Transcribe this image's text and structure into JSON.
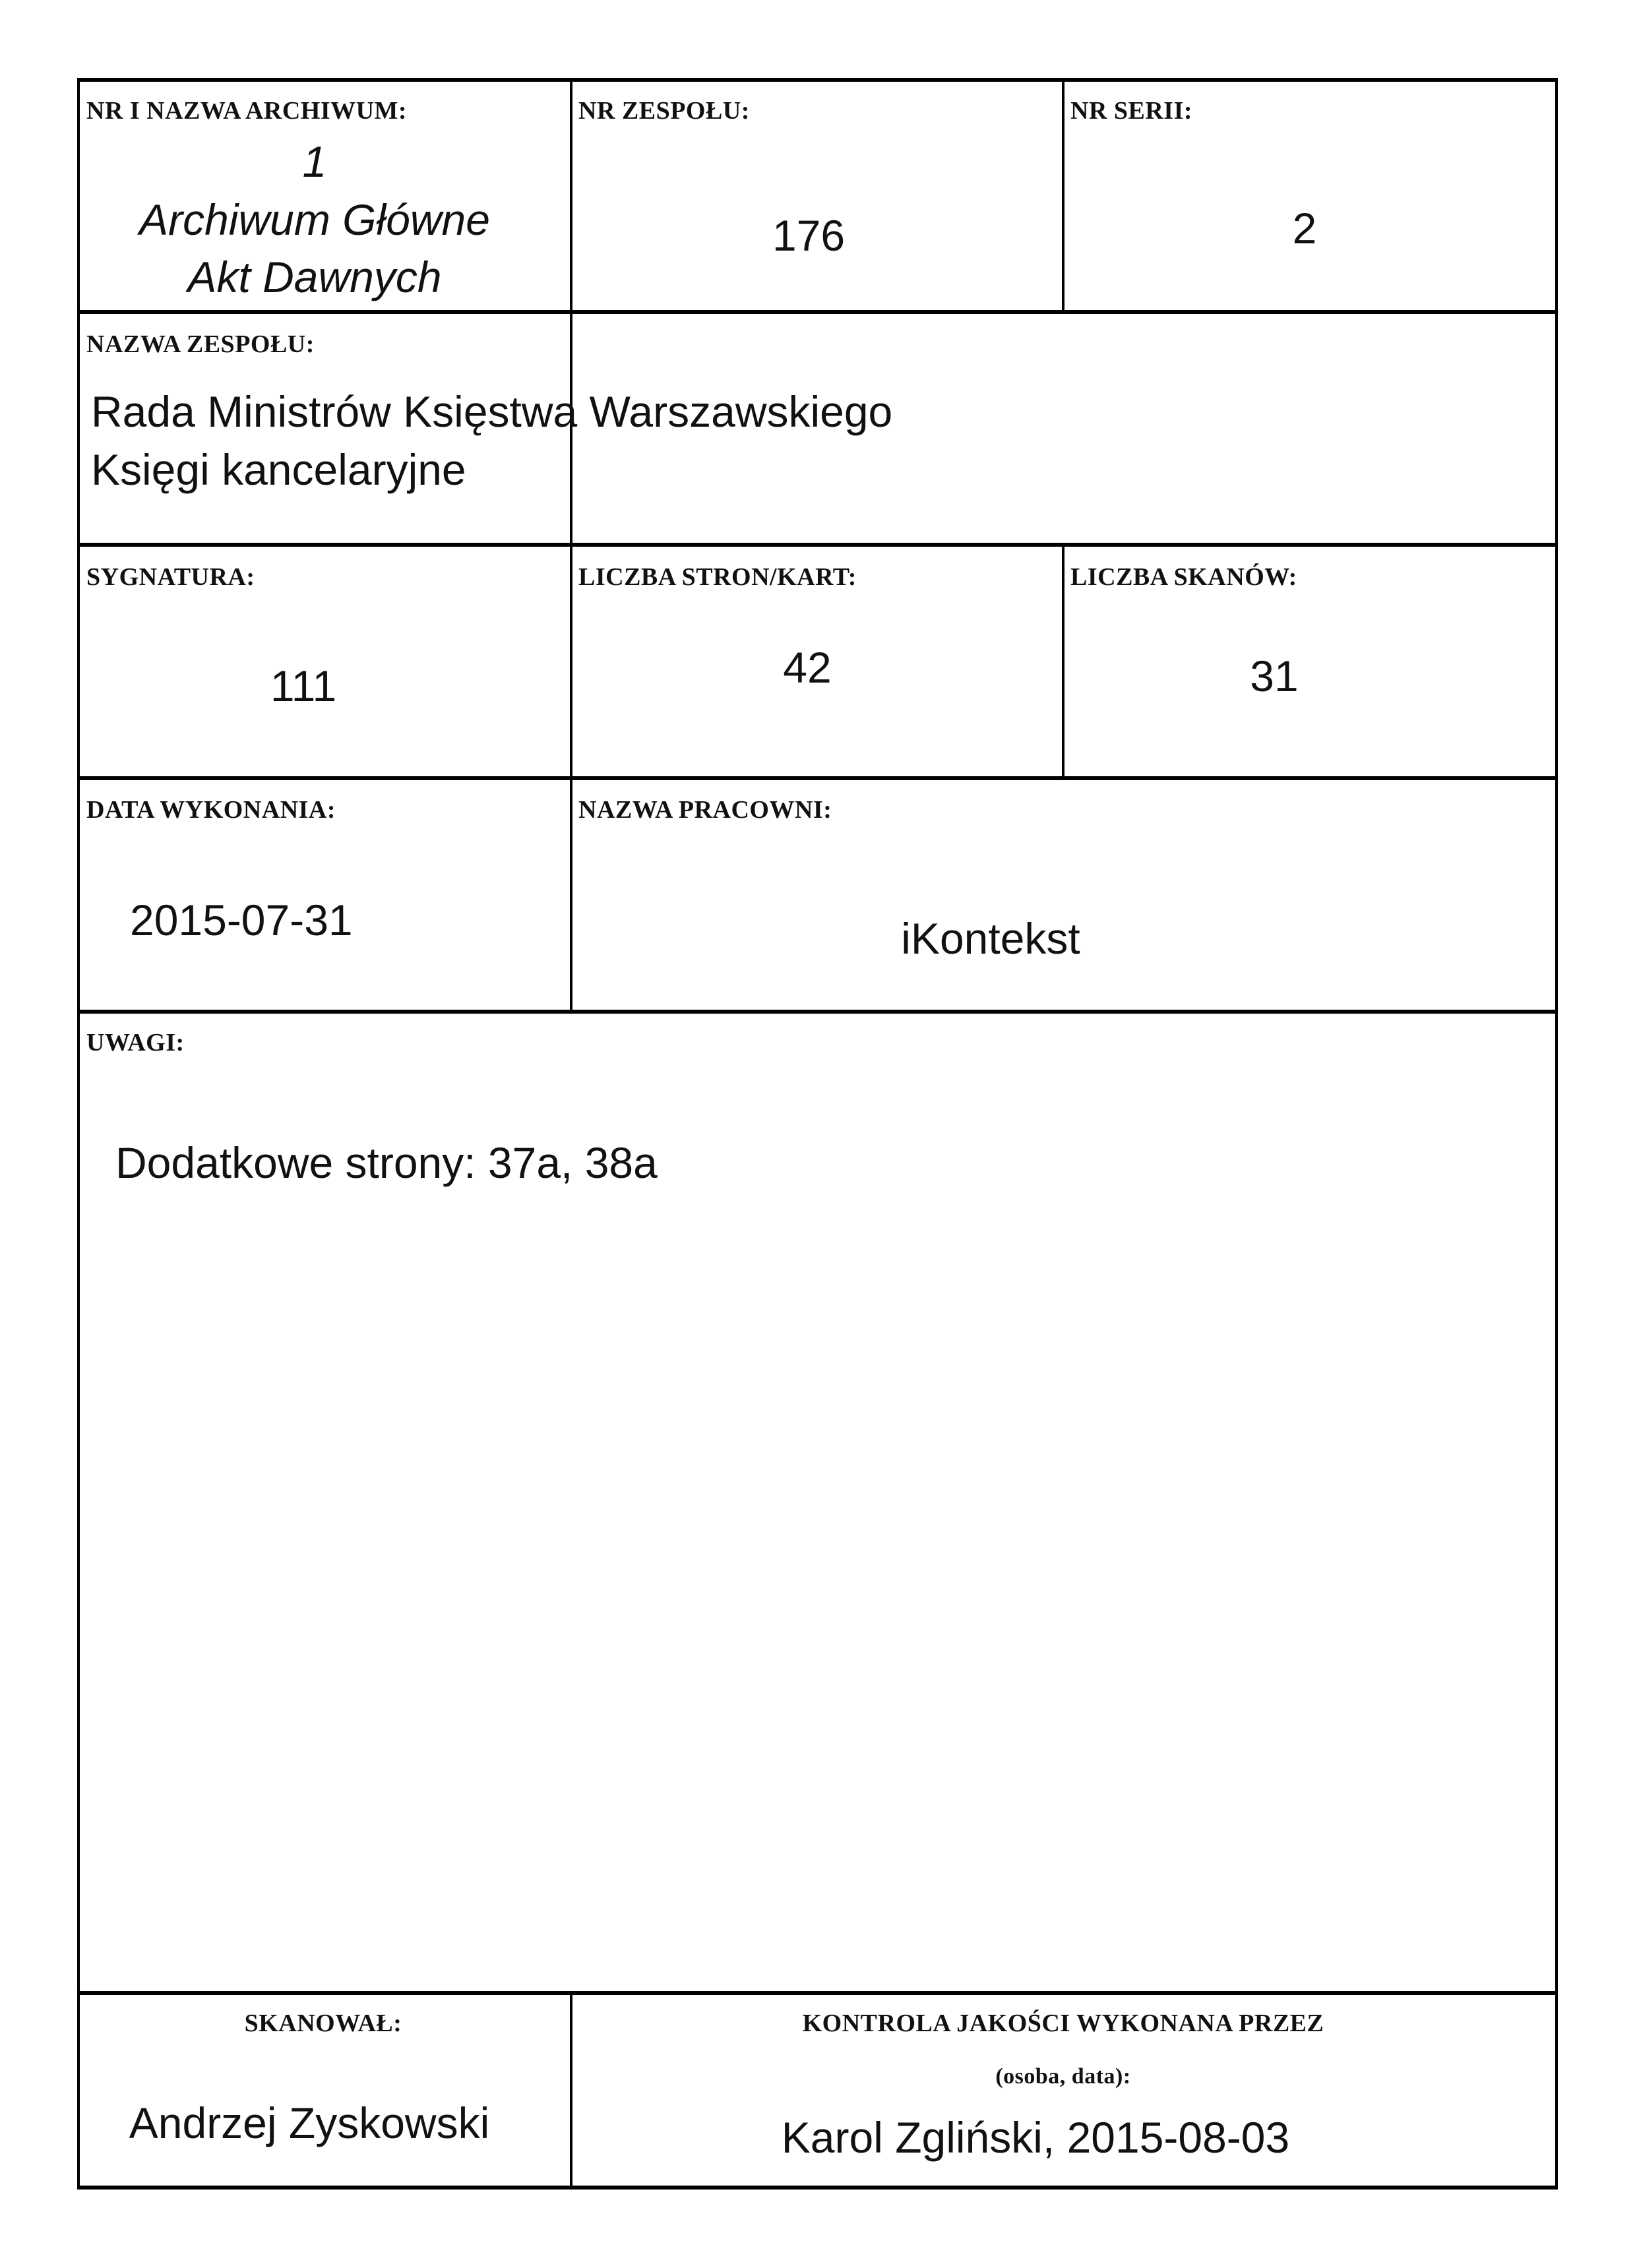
{
  "archive": {
    "label": "NR I NAZWA ARCHIWUM:",
    "number": "1",
    "name_line1": "Archiwum Główne",
    "name_line2": "Akt Dawnych"
  },
  "fonds_number": {
    "label": "NR ZESPOŁU:",
    "value": "176"
  },
  "series_number": {
    "label": "NR SERII:",
    "value": "2"
  },
  "fonds_name": {
    "label": "NAZWA ZESPOŁU:",
    "line1": "Rada Ministrów Księstwa Warszawskiego",
    "line2": "Księgi kancelaryjne"
  },
  "signature": {
    "label": "SYGNATURA:",
    "value": "111"
  },
  "pages": {
    "label": "LICZBA STRON/KART:",
    "value": "42"
  },
  "scans": {
    "label": "LICZBA SKANÓW:",
    "value": "31"
  },
  "date": {
    "label": "DATA WYKONANIA:",
    "value": "2015-07-31"
  },
  "workshop": {
    "label": "NAZWA PRACOWNI:",
    "value": "iKontekst"
  },
  "notes": {
    "label": "UWAGI:",
    "value": "Dodatkowe strony: 37a, 38a"
  },
  "scanned_by": {
    "label": "SKANOWAŁ:",
    "value": "Andrzej Zyskowski"
  },
  "quality_control": {
    "label": "KONTROLA JAKOŚCI WYKONANA PRZEZ",
    "sublabel": "(osoba, data):",
    "value": "Karol Zgliński, 2015-08-03"
  }
}
